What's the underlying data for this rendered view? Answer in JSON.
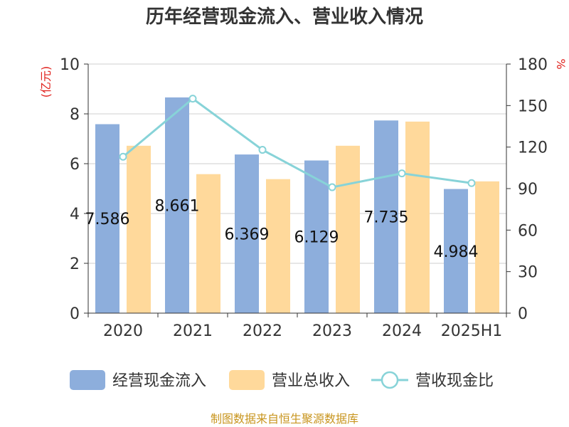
{
  "chart_data": {
    "type": "bar",
    "title": "历年经营现金流入、营业收入情况",
    "categories": [
      "2020",
      "2021",
      "2022",
      "2023",
      "2024",
      "2025H1"
    ],
    "y_left": {
      "unit": "(亿元)",
      "ylim": [
        0,
        10
      ],
      "ticks": [
        0,
        2,
        4,
        6,
        8,
        10
      ]
    },
    "y_right": {
      "unit": "%",
      "ylim": [
        0,
        180
      ],
      "ticks": [
        0,
        30,
        60,
        90,
        120,
        150,
        180
      ]
    },
    "grid": true,
    "series": [
      {
        "name": "经营现金流入",
        "type": "bar",
        "axis": "left",
        "color": "#8daedc",
        "values": [
          7.586,
          8.661,
          6.369,
          6.129,
          7.735,
          4.984
        ],
        "labels": [
          "7.586",
          "8.661",
          "6.369",
          "6.129",
          "7.735",
          "4.984"
        ]
      },
      {
        "name": "营业总收入",
        "type": "bar",
        "axis": "left",
        "color": "#ffd99b",
        "values": [
          6.72,
          5.58,
          5.38,
          6.72,
          7.69,
          5.29
        ]
      },
      {
        "name": "营收现金比",
        "type": "line",
        "axis": "right",
        "color": "#87d3d8",
        "values": [
          113,
          155,
          118,
          91,
          101,
          94
        ]
      }
    ],
    "legend_position": "bottom",
    "source": "制图数据来自恒生聚源数据库"
  }
}
